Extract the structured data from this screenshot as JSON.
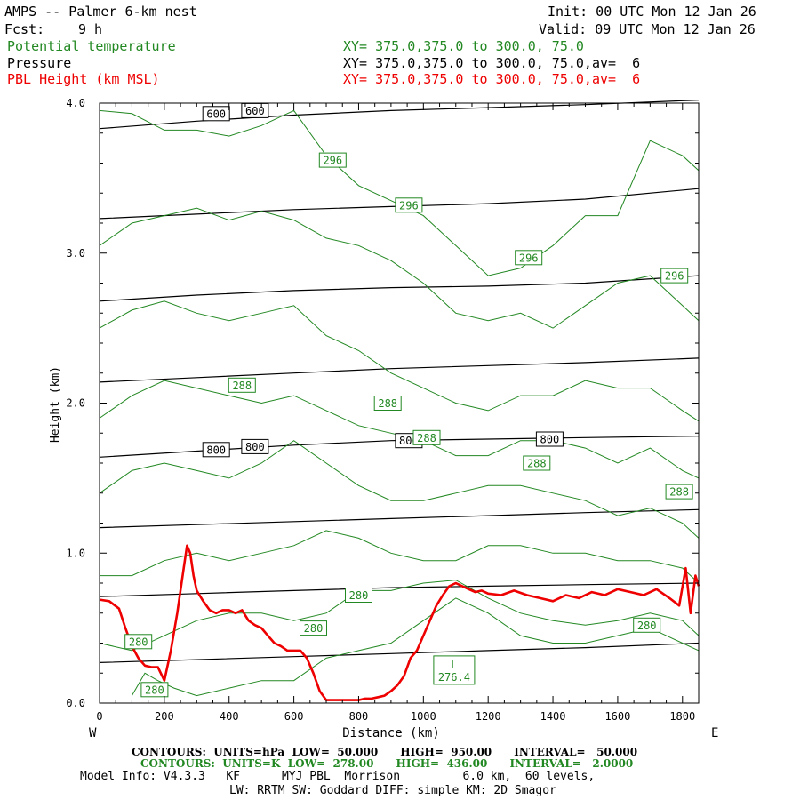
{
  "header": {
    "title": "AMPS -- Palmer 6-km nest",
    "init": "Init: 00 UTC Mon 12 Jan 26",
    "fcst_label": "Fcst:",
    "fcst_value": "9 h",
    "valid": "Valid: 09 UTC Mon 12 Jan 26",
    "fields": [
      {
        "name": "Potential temperature",
        "xy": "XY= 375.0,375.0 to 300.0, 75.0",
        "color": "#228822"
      },
      {
        "name": "Pressure",
        "xy": "XY= 375.0,375.0 to 300.0, 75.0,av=  6",
        "color": "#000000"
      },
      {
        "name": "PBL Height (km MSL)",
        "xy": "XY= 375.0,375.0 to 300.0, 75.0,av=  6",
        "color": "#ee0000"
      }
    ]
  },
  "orientation": {
    "left": "W",
    "right": "E"
  },
  "footer": {
    "line1_label": "CONTOURS:",
    "line1": "UNITS=hPa  LOW=  50.000      HIGH=  950.00      INTERVAL=   50.000",
    "line2_label": "CONTOURS:",
    "line2": "UNITS=K  LOW=  278.00      HIGH=  436.00      INTERVAL=   2.0000",
    "model_info": "Model Info: V4.3.3   KF      MYJ PBL  Morrison         6.0 km,  60 levels,",
    "physics": "LW: RRTM SW: Goddard DIFF: simple KM: 2D Smagor"
  },
  "colors": {
    "theta": "#228822",
    "pressure": "#000000",
    "pbl": "#ee0000"
  },
  "chart_data": {
    "type": "line",
    "title": "AMPS -- Palmer 6-km nest",
    "xlabel": "Distance (km)",
    "ylabel": "Height (km)",
    "xlim": [
      0,
      1850
    ],
    "ylim": [
      0,
      4.0
    ],
    "xticks": [
      0,
      200,
      400,
      600,
      800,
      1000,
      1200,
      1400,
      1600,
      1800
    ],
    "yticks": [
      0.0,
      1.0,
      2.0,
      3.0,
      4.0
    ],
    "ytick_labels": [
      "0.0",
      "1.0",
      "2.0",
      "3.0",
      "4.0"
    ],
    "pressure_contours": [
      {
        "level": 950,
        "x": [
          0,
          300,
          600,
          900,
          1200,
          1500,
          1850
        ],
        "y": [
          0.27,
          0.29,
          0.31,
          0.33,
          0.35,
          0.37,
          0.4
        ]
      },
      {
        "level": 900,
        "x": [
          0,
          300,
          600,
          900,
          1200,
          1500,
          1850
        ],
        "y": [
          0.71,
          0.73,
          0.75,
          0.77,
          0.78,
          0.79,
          0.8
        ]
      },
      {
        "level": 850,
        "x": [
          0,
          300,
          600,
          900,
          1200,
          1500,
          1850
        ],
        "y": [
          1.17,
          1.19,
          1.21,
          1.23,
          1.25,
          1.27,
          1.29
        ]
      },
      {
        "level": 800,
        "x": [
          0,
          300,
          600,
          900,
          1200,
          1500,
          1850
        ],
        "y": [
          1.64,
          1.68,
          1.72,
          1.75,
          1.76,
          1.77,
          1.78
        ]
      },
      {
        "level": 750,
        "x": [
          0,
          300,
          600,
          900,
          1200,
          1500,
          1850
        ],
        "y": [
          2.14,
          2.17,
          2.2,
          2.23,
          2.25,
          2.27,
          2.3
        ]
      },
      {
        "level": 700,
        "x": [
          0,
          300,
          600,
          900,
          1200,
          1500,
          1850
        ],
        "y": [
          2.68,
          2.72,
          2.75,
          2.77,
          2.78,
          2.8,
          2.85
        ]
      },
      {
        "level": 650,
        "x": [
          0,
          300,
          600,
          900,
          1200,
          1500,
          1850
        ],
        "y": [
          3.23,
          3.26,
          3.29,
          3.31,
          3.33,
          3.36,
          3.43
        ]
      },
      {
        "level": 600,
        "x": [
          0,
          300,
          600,
          900,
          1200,
          1500,
          1850
        ],
        "y": [
          3.83,
          3.88,
          3.92,
          3.95,
          3.97,
          3.99,
          4.02
        ]
      }
    ],
    "pressure_labels": [
      {
        "text": "600",
        "x": 360,
        "y": 3.93
      },
      {
        "text": "600",
        "x": 480,
        "y": 3.95
      },
      {
        "text": "800",
        "x": 360,
        "y": 1.69
      },
      {
        "text": "800",
        "x": 480,
        "y": 1.71
      },
      {
        "text": "800",
        "x": 955,
        "y": 1.75
      },
      {
        "text": "800",
        "x": 1390,
        "y": 1.76
      }
    ],
    "theta_contours": [
      {
        "x": [
          0,
          100,
          200,
          300,
          400,
          500,
          600,
          700,
          800,
          900,
          1000,
          1100,
          1200,
          1300,
          1400,
          1500,
          1600,
          1700,
          1800,
          1850
        ],
        "y": [
          3.95,
          3.93,
          3.82,
          3.82,
          3.78,
          3.85,
          3.95,
          3.65,
          3.45,
          3.35,
          3.25,
          3.05,
          2.85,
          2.9,
          3.05,
          3.25,
          3.25,
          3.75,
          3.65,
          3.55
        ]
      },
      {
        "x": [
          0,
          100,
          200,
          300,
          400,
          500,
          600,
          700,
          800,
          900,
          1000,
          1100,
          1200,
          1300,
          1400,
          1500,
          1600,
          1700,
          1800,
          1850
        ],
        "y": [
          3.05,
          3.2,
          3.25,
          3.3,
          3.22,
          3.28,
          3.22,
          3.1,
          3.05,
          2.95,
          2.8,
          2.6,
          2.55,
          2.6,
          2.5,
          2.65,
          2.8,
          2.85,
          2.65,
          2.55
        ]
      },
      {
        "x": [
          0,
          100,
          200,
          300,
          400,
          500,
          600,
          700,
          800,
          900,
          1000,
          1100,
          1200,
          1300,
          1400,
          1500,
          1600,
          1700,
          1800,
          1850
        ],
        "y": [
          2.5,
          2.62,
          2.68,
          2.6,
          2.55,
          2.6,
          2.65,
          2.45,
          2.35,
          2.2,
          2.1,
          2.0,
          1.95,
          2.05,
          2.05,
          2.15,
          2.1,
          2.1,
          1.95,
          1.88
        ]
      },
      {
        "x": [
          0,
          100,
          200,
          300,
          400,
          500,
          600,
          700,
          800,
          900,
          1000,
          1100,
          1200,
          1300,
          1400,
          1500,
          1600,
          1700,
          1800,
          1850
        ],
        "y": [
          1.9,
          2.05,
          2.15,
          2.1,
          2.05,
          2.0,
          2.05,
          1.95,
          1.85,
          1.8,
          1.75,
          1.65,
          1.65,
          1.75,
          1.75,
          1.7,
          1.6,
          1.7,
          1.55,
          1.5
        ]
      },
      {
        "x": [
          0,
          100,
          200,
          300,
          400,
          500,
          600,
          700,
          800,
          900,
          1000,
          1100,
          1200,
          1300,
          1400,
          1500,
          1600,
          1700,
          1800,
          1850
        ],
        "y": [
          1.4,
          1.55,
          1.6,
          1.55,
          1.5,
          1.6,
          1.75,
          1.6,
          1.45,
          1.35,
          1.35,
          1.4,
          1.45,
          1.45,
          1.4,
          1.35,
          1.25,
          1.3,
          1.2,
          1.1
        ]
      },
      {
        "x": [
          0,
          100,
          200,
          300,
          400,
          500,
          600,
          700,
          800,
          900,
          1000,
          1100,
          1200,
          1300,
          1400,
          1500,
          1600,
          1700,
          1800,
          1850
        ],
        "y": [
          0.85,
          0.85,
          0.95,
          1.0,
          0.95,
          1.0,
          1.05,
          1.15,
          1.1,
          1.0,
          0.95,
          0.95,
          1.05,
          1.05,
          1.0,
          1.0,
          0.95,
          0.95,
          0.9,
          0.8
        ]
      },
      {
        "x": [
          0,
          100,
          200,
          300,
          400,
          500,
          600,
          700,
          800,
          900,
          1000,
          1100,
          1200,
          1300,
          1400,
          1500,
          1600,
          1700,
          1800,
          1850
        ],
        "y": [
          0.4,
          0.35,
          0.45,
          0.55,
          0.6,
          0.6,
          0.55,
          0.6,
          0.75,
          0.75,
          0.8,
          0.82,
          0.7,
          0.6,
          0.55,
          0.52,
          0.55,
          0.6,
          0.55,
          0.45
        ]
      },
      {
        "x": [
          100,
          140,
          180,
          230,
          300,
          400,
          500,
          600,
          700,
          800,
          900,
          1000,
          1100,
          1200,
          1300,
          1400,
          1500,
          1600,
          1700,
          1800,
          1850
        ],
        "y": [
          0.05,
          0.2,
          0.15,
          0.1,
          0.05,
          0.1,
          0.15,
          0.15,
          0.3,
          0.35,
          0.4,
          0.55,
          0.7,
          0.6,
          0.45,
          0.4,
          0.4,
          0.45,
          0.5,
          0.4,
          0.35
        ]
      }
    ],
    "theta_labels": [
      {
        "text": "296",
        "x": 720,
        "y": 3.62
      },
      {
        "text": "296",
        "x": 955,
        "y": 3.32
      },
      {
        "text": "296",
        "x": 1325,
        "y": 2.97
      },
      {
        "text": "296",
        "x": 1775,
        "y": 2.85
      },
      {
        "text": "288",
        "x": 440,
        "y": 2.12
      },
      {
        "text": "288",
        "x": 890,
        "y": 2.0
      },
      {
        "text": "288",
        "x": 1010,
        "y": 1.77
      },
      {
        "text": "288",
        "x": 1350,
        "y": 1.6
      },
      {
        "text": "288",
        "x": 1790,
        "y": 1.41
      },
      {
        "text": "280",
        "x": 120,
        "y": 0.41
      },
      {
        "text": "280",
        "x": 170,
        "y": 0.09
      },
      {
        "text": "280",
        "x": 660,
        "y": 0.5
      },
      {
        "text": "280",
        "x": 800,
        "y": 0.72
      },
      {
        "text": "280",
        "x": 1690,
        "y": 0.52
      }
    ],
    "low_marker": {
      "letter": "L",
      "value": "276.4",
      "x": 1095,
      "y": 0.22
    },
    "pbl_height": {
      "x": [
        0,
        30,
        60,
        80,
        100,
        120,
        140,
        160,
        180,
        200,
        220,
        240,
        260,
        270,
        280,
        290,
        300,
        320,
        340,
        360,
        380,
        400,
        420,
        440,
        460,
        480,
        500,
        520,
        540,
        560,
        580,
        600,
        620,
        640,
        660,
        680,
        700,
        720,
        740,
        760,
        780,
        800,
        820,
        840,
        860,
        880,
        900,
        920,
        940,
        960,
        980,
        1000,
        1020,
        1040,
        1060,
        1080,
        1100,
        1120,
        1140,
        1160,
        1180,
        1200,
        1240,
        1280,
        1320,
        1360,
        1400,
        1440,
        1480,
        1520,
        1560,
        1600,
        1640,
        1680,
        1720,
        1760,
        1790,
        1810,
        1825,
        1840,
        1850
      ],
      "y": [
        0.69,
        0.68,
        0.63,
        0.5,
        0.38,
        0.3,
        0.25,
        0.24,
        0.24,
        0.15,
        0.35,
        0.6,
        0.9,
        1.05,
        1.0,
        0.85,
        0.75,
        0.68,
        0.62,
        0.6,
        0.62,
        0.62,
        0.6,
        0.62,
        0.55,
        0.52,
        0.5,
        0.45,
        0.4,
        0.38,
        0.35,
        0.35,
        0.35,
        0.3,
        0.2,
        0.08,
        0.02,
        0.02,
        0.02,
        0.02,
        0.02,
        0.02,
        0.03,
        0.03,
        0.04,
        0.05,
        0.08,
        0.12,
        0.18,
        0.3,
        0.35,
        0.45,
        0.55,
        0.65,
        0.72,
        0.78,
        0.8,
        0.78,
        0.76,
        0.74,
        0.75,
        0.73,
        0.72,
        0.75,
        0.72,
        0.7,
        0.68,
        0.72,
        0.7,
        0.74,
        0.72,
        0.76,
        0.74,
        0.72,
        0.76,
        0.7,
        0.65,
        0.9,
        0.6,
        0.85,
        0.78
      ]
    }
  }
}
